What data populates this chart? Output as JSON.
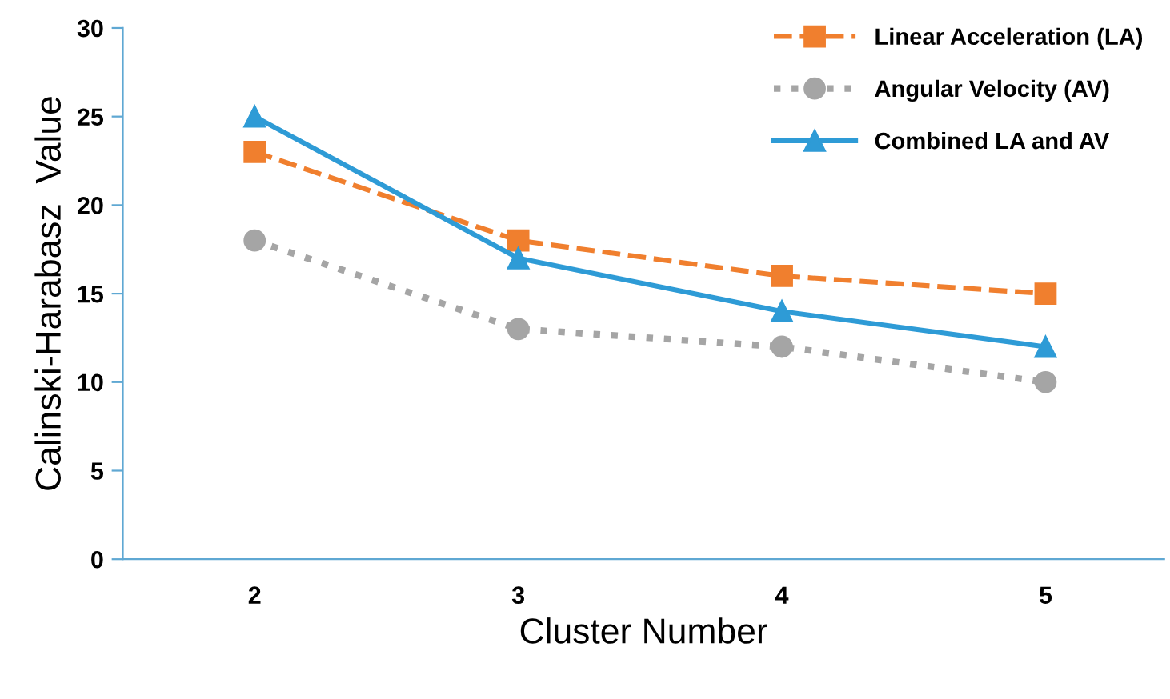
{
  "chart_data": {
    "type": "line",
    "xlabel": "Cluster Number",
    "ylabel": "Calinski-Harabasz  Value",
    "categories": [
      "2",
      "3",
      "4",
      "5"
    ],
    "series": [
      {
        "name": "Linear Acceleration (LA)",
        "color": "#f07f2e",
        "values": [
          23,
          18,
          16,
          15
        ],
        "marker": "square",
        "line_style": "dashed"
      },
      {
        "name": "Angular Velocity (AV)",
        "color": "#a5a5a5",
        "values": [
          18,
          13,
          12,
          10
        ],
        "marker": "circle",
        "line_style": "dotted"
      },
      {
        "name": "Combined LA and AV",
        "color": "#2e9bd6",
        "values": [
          25,
          17,
          14,
          12
        ],
        "marker": "triangle",
        "line_style": "solid"
      }
    ],
    "ylim": [
      0,
      30
    ],
    "yticks": [
      0,
      5,
      10,
      15,
      20,
      25,
      30
    ],
    "grid": false,
    "legend": "top right"
  }
}
